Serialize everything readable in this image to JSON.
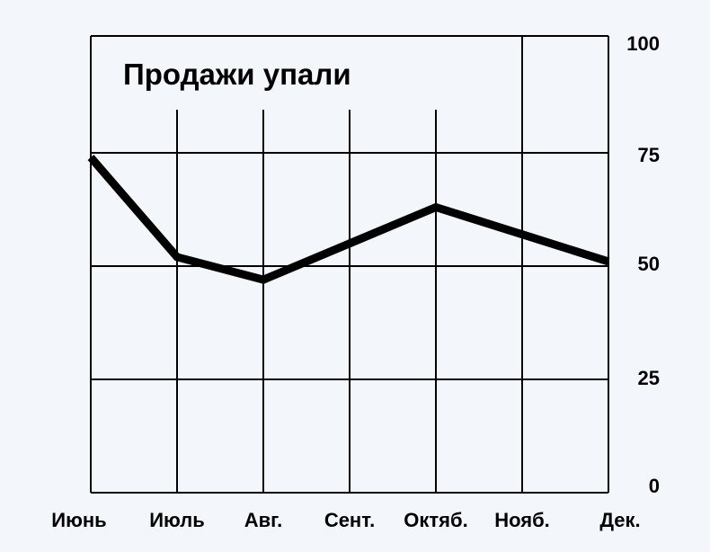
{
  "chart_data": {
    "type": "line",
    "title": "Продажи упали",
    "categories": [
      "Июнь",
      "Июль",
      "Авг.",
      "Сент.",
      "Октяб.",
      "Нояб.",
      "Дек."
    ],
    "values": [
      74,
      52,
      47,
      55,
      63,
      57,
      51
    ],
    "ylim": [
      0,
      100
    ],
    "yticks": [
      "0",
      "25",
      "50",
      "75",
      "100"
    ],
    "ytick_values": [
      0,
      25,
      50,
      75,
      100
    ],
    "y_axis_side": "right",
    "grid": true,
    "line_color": "#000000",
    "background": "#f3f6fb"
  }
}
